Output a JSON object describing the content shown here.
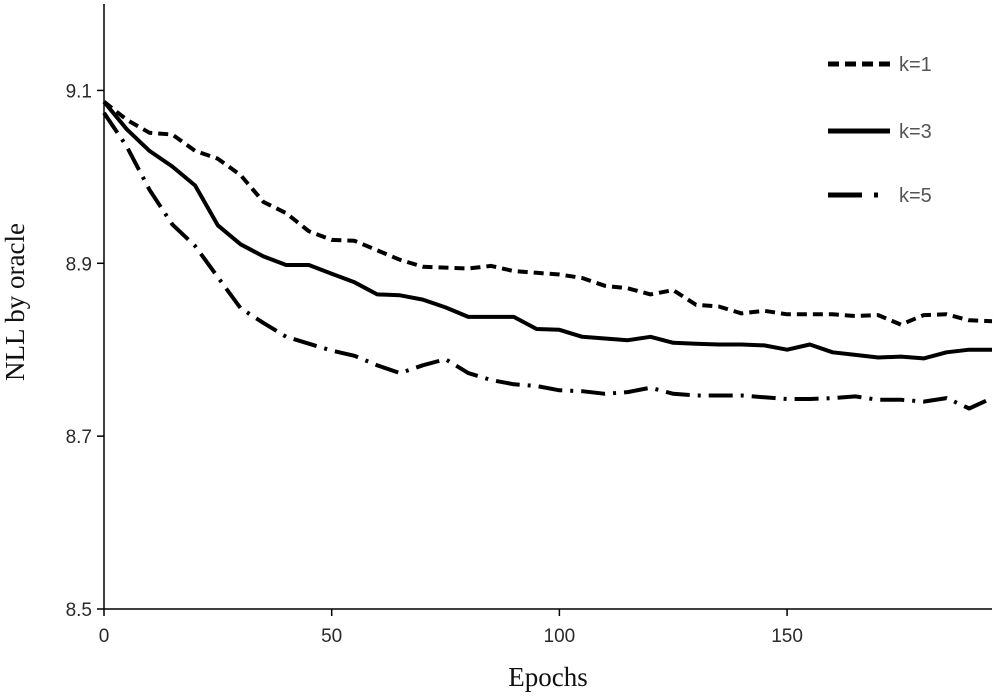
{
  "chart_data": {
    "type": "line",
    "title": "",
    "xlabel": "Epochs",
    "ylabel": "NLL by oracle",
    "xlim": [
      0,
      195
    ],
    "ylim": [
      8.5,
      9.2
    ],
    "xticks": [
      0,
      50,
      100,
      150
    ],
    "yticks": [
      8.5,
      8.7,
      8.9,
      9.1
    ],
    "xtick_labels": [
      "0",
      "50",
      "100",
      "150"
    ],
    "ytick_labels": [
      "8.5",
      "8.7",
      "8.9",
      "9.1"
    ],
    "grid": false,
    "legend_position": "top-right",
    "x": [
      0,
      5,
      10,
      15,
      20,
      25,
      30,
      35,
      40,
      45,
      50,
      55,
      60,
      65,
      70,
      75,
      80,
      85,
      90,
      95,
      100,
      105,
      110,
      115,
      120,
      125,
      130,
      135,
      140,
      145,
      150,
      155,
      160,
      165,
      170,
      175,
      180,
      185,
      190,
      195
    ],
    "series": [
      {
        "name": "k=1",
        "style": "dashed",
        "values": [
          9.087,
          9.066,
          9.051,
          9.049,
          9.03,
          9.021,
          9.002,
          8.971,
          8.958,
          8.937,
          8.927,
          8.926,
          8.915,
          8.904,
          8.896,
          8.895,
          8.894,
          8.897,
          8.891,
          8.889,
          8.887,
          8.883,
          8.874,
          8.871,
          8.864,
          8.869,
          8.852,
          8.85,
          8.842,
          8.845,
          8.841,
          8.841,
          8.841,
          8.839,
          8.84,
          8.829,
          8.84,
          8.841,
          8.834,
          8.833
        ]
      },
      {
        "name": "k=3",
        "style": "solid",
        "values": [
          9.087,
          9.055,
          9.03,
          9.012,
          8.99,
          8.944,
          8.922,
          8.908,
          8.898,
          8.898,
          8.888,
          8.878,
          8.864,
          8.863,
          8.858,
          8.849,
          8.838,
          8.838,
          8.838,
          8.824,
          8.823,
          8.815,
          8.813,
          8.811,
          8.815,
          8.808,
          8.807,
          8.806,
          8.806,
          8.805,
          8.8,
          8.806,
          8.797,
          8.794,
          8.791,
          8.792,
          8.79,
          8.797,
          8.8,
          8.8
        ]
      },
      {
        "name": "k=5",
        "style": "dash-dot",
        "values": [
          9.074,
          9.035,
          8.985,
          8.945,
          8.92,
          8.884,
          8.848,
          8.831,
          8.815,
          8.807,
          8.799,
          8.793,
          8.782,
          8.773,
          8.782,
          8.789,
          8.773,
          8.765,
          8.76,
          8.758,
          8.753,
          8.752,
          8.749,
          8.751,
          8.756,
          8.749,
          8.747,
          8.747,
          8.747,
          8.745,
          8.743,
          8.743,
          8.744,
          8.746,
          8.742,
          8.742,
          8.74,
          8.744,
          8.732,
          8.744
        ]
      }
    ]
  },
  "colors": {
    "line": "#000000",
    "axis": "#000000",
    "legend_text": "#555555"
  }
}
